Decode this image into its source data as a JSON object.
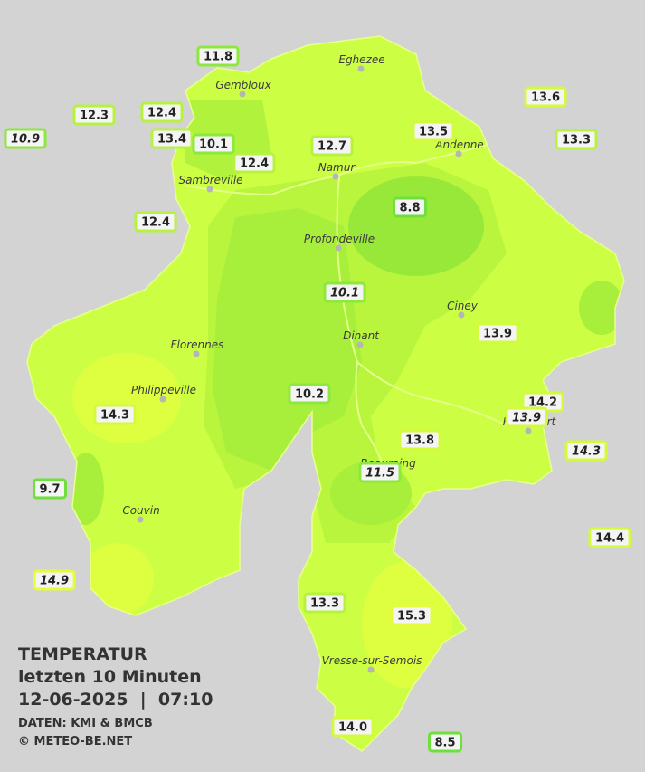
{
  "cities": [
    "Eghezee",
    "Gembloux",
    "Andenne",
    "Namur",
    "Sambreville",
    "Profondeville",
    "Ciney",
    "Dinant",
    "Florennes",
    "Philippeville",
    "Couvin",
    "Vresse-sur-Semois",
    "Rochefort",
    "Beauraing"
  ],
  "stations": [
    "11.8",
    "12.3",
    "12.4",
    "10.9",
    "13.4",
    "10.1",
    "12.4",
    "12.7",
    "13.5",
    "13.6",
    "13.3",
    "8.8",
    "12.4",
    "10.1",
    "13.9",
    "10.2",
    "14.3",
    "14.2",
    "13.9",
    "14.3",
    "13.8",
    "11.5",
    "9.7",
    "14.4",
    "14.9",
    "13.3",
    "15.3",
    "14.0",
    "8.5"
  ],
  "legend": {
    "title": "TEMPERATUR",
    "period": "letzten 10 Minuten",
    "datetime": "12-06-2025  |  07:10",
    "source": "DATEN: KMI & BMCB",
    "copyright": "© METEO-BE.NET"
  }
}
